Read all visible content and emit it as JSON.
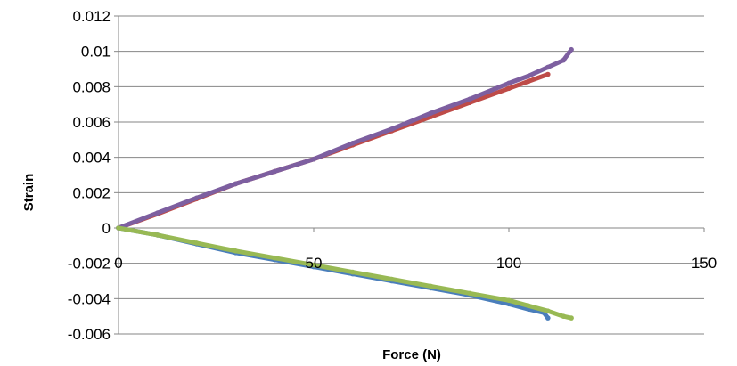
{
  "chart_data": {
    "type": "scatter",
    "title": "",
    "xlabel": "Force (N)",
    "ylabel": "Strain",
    "xlim": [
      0,
      150
    ],
    "ylim": [
      -0.006,
      0.012
    ],
    "x_ticks": [
      0,
      50,
      100,
      150
    ],
    "x_tick_labels": [
      "0",
      "50",
      "100",
      "150"
    ],
    "y_ticks": [
      0.012,
      0.01,
      0.008,
      0.006,
      0.004,
      0.002,
      0,
      -0.002,
      -0.004,
      -0.006
    ],
    "y_tick_labels": [
      "0.012",
      "0.01",
      "0.008",
      "0.006",
      "0.004",
      "0.002",
      "0",
      "-0.002",
      "-0.004",
      "-0.006"
    ],
    "grid": "horizontal",
    "legend": "none",
    "series": [
      {
        "color": "#be4b48",
        "x": [
          0,
          10,
          20,
          30,
          40,
          50,
          60,
          70,
          80,
          90,
          100,
          105,
          110
        ],
        "y": [
          0,
          0.0008,
          0.00165,
          0.0025,
          0.0032,
          0.0039,
          0.0047,
          0.0055,
          0.0063,
          0.0071,
          0.0079,
          0.0083,
          0.0087
        ]
      },
      {
        "color": "#7d5fa0",
        "x": [
          0,
          10,
          20,
          30,
          40,
          50,
          60,
          70,
          80,
          90,
          100,
          105,
          110,
          114,
          116
        ],
        "y": [
          0,
          0.00085,
          0.0017,
          0.0025,
          0.0032,
          0.0039,
          0.0048,
          0.0056,
          0.0065,
          0.0073,
          0.0082,
          0.0086,
          0.0091,
          0.0095,
          0.0101
        ]
      },
      {
        "color": "#4a7ebb",
        "x": [
          0,
          10,
          20,
          30,
          40,
          50,
          60,
          70,
          80,
          90,
          100,
          105,
          109,
          110
        ],
        "y": [
          0,
          -0.0004,
          -0.0009,
          -0.0014,
          -0.0018,
          -0.0022,
          -0.0026,
          -0.003,
          -0.0034,
          -0.0038,
          -0.0043,
          -0.0046,
          -0.0048,
          -0.0051
        ]
      },
      {
        "color": "#98b954",
        "x": [
          0,
          10,
          20,
          30,
          40,
          50,
          60,
          70,
          80,
          90,
          100,
          105,
          110,
          114,
          116
        ],
        "y": [
          0,
          -0.0004,
          -0.00085,
          -0.0013,
          -0.0017,
          -0.0021,
          -0.0025,
          -0.0029,
          -0.0033,
          -0.0037,
          -0.0041,
          -0.0044,
          -0.0047,
          -0.005,
          -0.0051
        ]
      }
    ]
  }
}
